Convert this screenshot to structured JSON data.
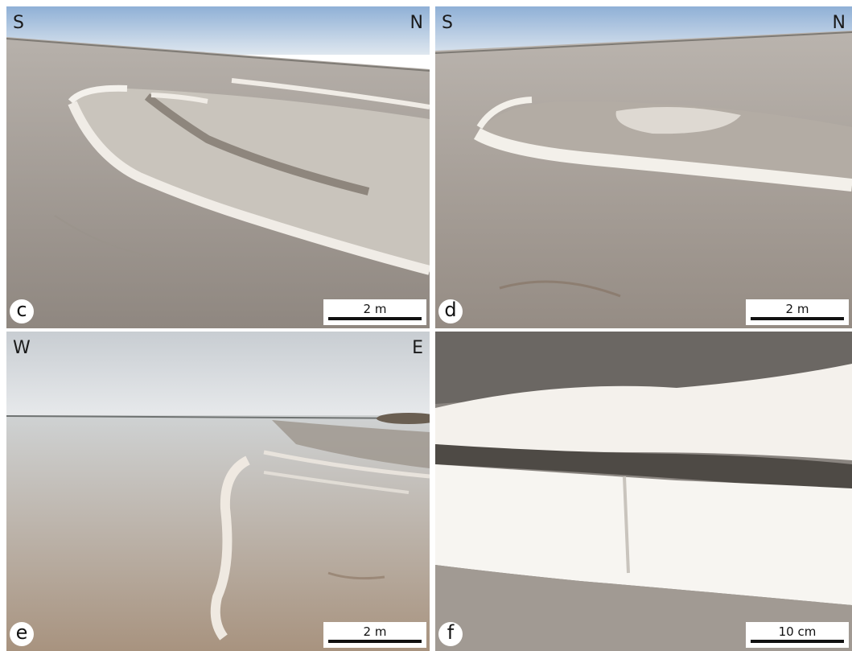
{
  "panels": [
    {
      "id": "c",
      "letter": "c",
      "dir_left": "S",
      "dir_right": "N",
      "scale_label": "2 m"
    },
    {
      "id": "d",
      "letter": "d",
      "dir_left": "S",
      "dir_right": "N",
      "scale_label": "2 m"
    },
    {
      "id": "e",
      "letter": "e",
      "dir_left": "W",
      "dir_right": "E",
      "scale_label": "2 m"
    },
    {
      "id": "f",
      "letter": "f",
      "dir_left": "",
      "dir_right": "",
      "scale_label": "10 cm"
    }
  ],
  "colors": {
    "salt_crust": "#f2efe9",
    "mudflat": "#a89f96",
    "sky": "#b9cde2",
    "brine_water": "#b8a898"
  }
}
